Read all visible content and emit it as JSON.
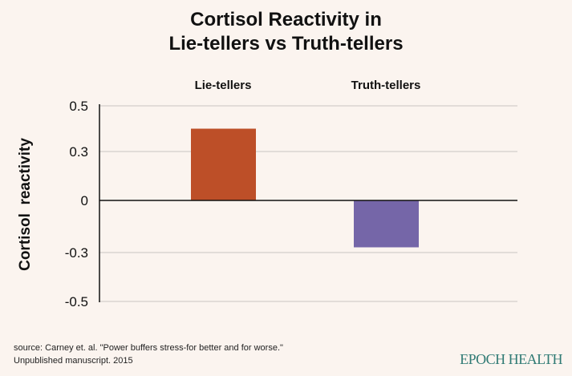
{
  "chart_data": {
    "type": "bar",
    "title_line1": "Cortisol Reactivity in",
    "title_line2": "Lie-tellers vs Truth-tellers",
    "ylabel": "Cortisol  reactivity",
    "xlabel": "",
    "categories": [
      "Lie-tellers",
      "Truth-tellers"
    ],
    "values": [
      0.4,
      -0.27
    ],
    "colors": [
      "#bd4f28",
      "#7566a8"
    ],
    "yticks": [
      0.5,
      0.3,
      0,
      -0.3,
      -0.5
    ],
    "ytick_labels": [
      "0.5",
      "0.3",
      "0",
      "-0.3",
      "-0.5"
    ],
    "ylim": [
      -0.5,
      0.5
    ],
    "grid": true,
    "category_labels_position": "top"
  },
  "source_line1": "source: Carney et. al. \"Power buffers stress-for better and for worse.\"",
  "source_line2": "Unpublished manuscript. 2015",
  "logo_text": "EPOCH HEALTH"
}
